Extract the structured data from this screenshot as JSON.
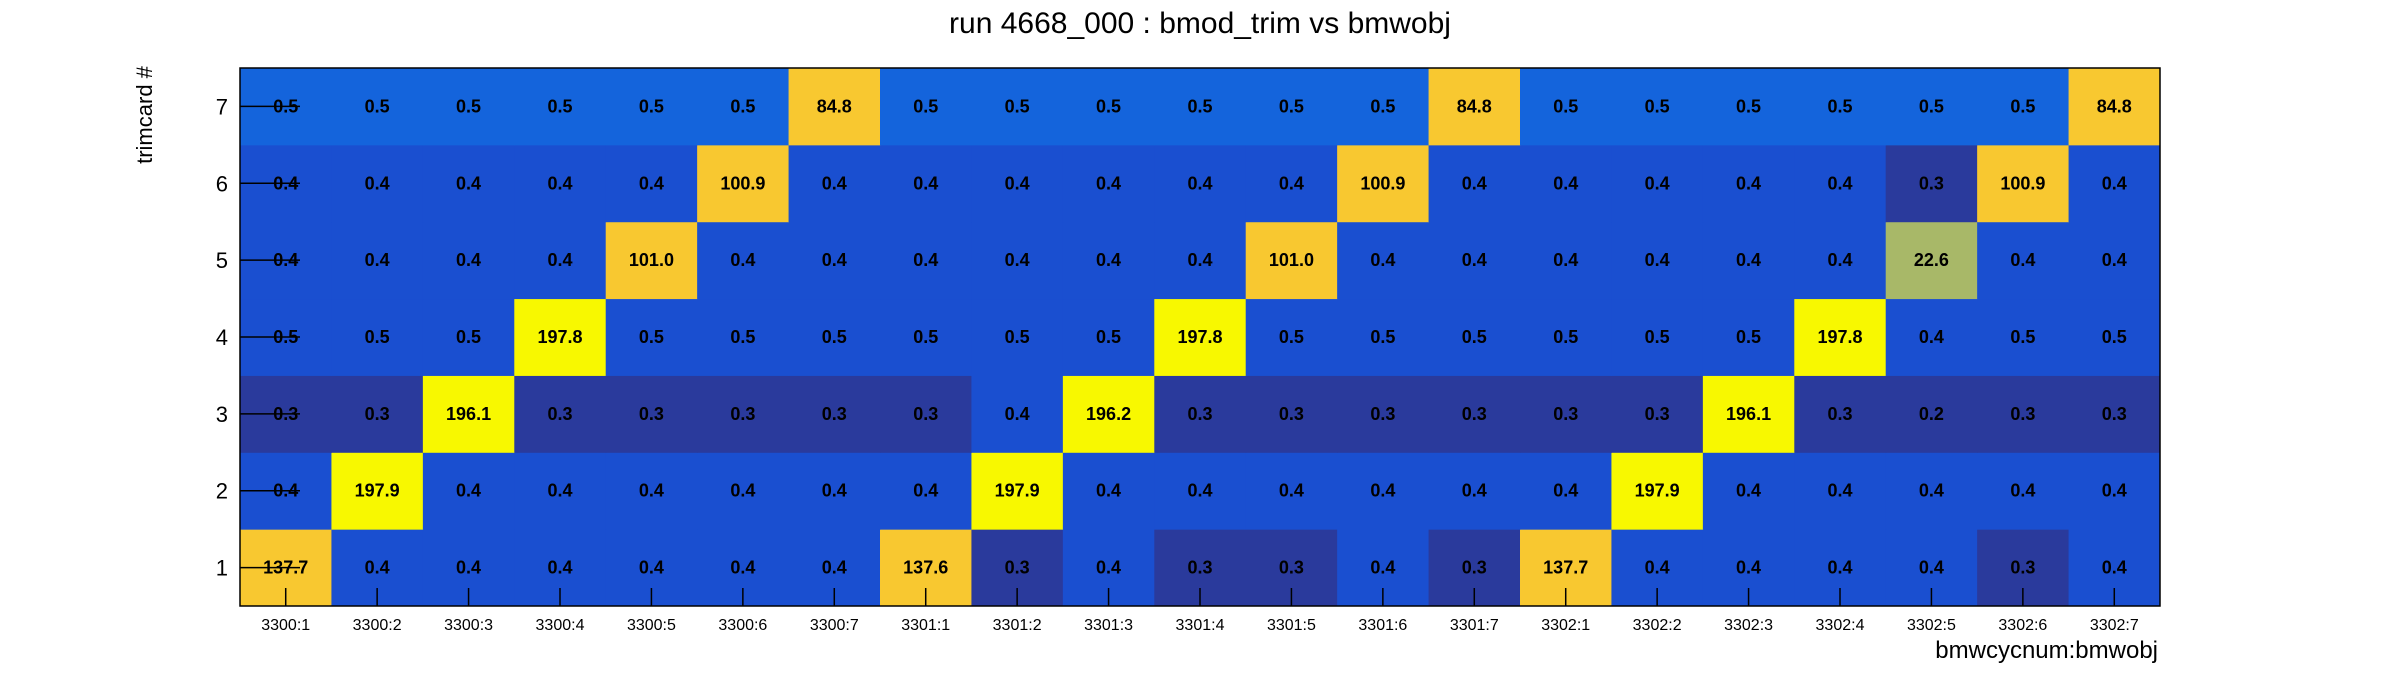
{
  "chart_data": {
    "type": "heatmap",
    "title": "run 4668_000 : bmod_trim vs bmwobj",
    "xlabel": "bmwcycnum:bmwobj",
    "ylabel": "trimcard #",
    "x_categories": [
      "3300:1",
      "3300:2",
      "3300:3",
      "3300:4",
      "3300:5",
      "3300:6",
      "3300:7",
      "3301:1",
      "3301:2",
      "3301:3",
      "3301:4",
      "3301:5",
      "3301:6",
      "3301:7",
      "3302:1",
      "3302:2",
      "3302:3",
      "3302:4",
      "3302:5",
      "3302:6",
      "3302:7"
    ],
    "y_categories": [
      "1",
      "2",
      "3",
      "4",
      "5",
      "6",
      "7"
    ],
    "values": [
      [
        "137.7",
        "0.4",
        "0.4",
        "0.4",
        "0.4",
        "0.4",
        "0.4",
        "137.6",
        "0.3",
        "0.4",
        "0.3",
        "0.3",
        "0.4",
        "0.3",
        "137.7",
        "0.4",
        "0.4",
        "0.4",
        "0.4",
        "0.3",
        "0.4"
      ],
      [
        "0.4",
        "197.9",
        "0.4",
        "0.4",
        "0.4",
        "0.4",
        "0.4",
        "0.4",
        "197.9",
        "0.4",
        "0.4",
        "0.4",
        "0.4",
        "0.4",
        "0.4",
        "197.9",
        "0.4",
        "0.4",
        "0.4",
        "0.4",
        "0.4"
      ],
      [
        "0.3",
        "0.3",
        "196.1",
        "0.3",
        "0.3",
        "0.3",
        "0.3",
        "0.3",
        "0.4",
        "196.2",
        "0.3",
        "0.3",
        "0.3",
        "0.3",
        "0.3",
        "0.3",
        "196.1",
        "0.3",
        "0.2",
        "0.3",
        "0.3"
      ],
      [
        "0.5",
        "0.5",
        "0.5",
        "197.8",
        "0.5",
        "0.5",
        "0.5",
        "0.5",
        "0.5",
        "0.5",
        "197.8",
        "0.5",
        "0.5",
        "0.5",
        "0.5",
        "0.5",
        "0.5",
        "197.8",
        "0.4",
        "0.5",
        "0.5"
      ],
      [
        "0.4",
        "0.4",
        "0.4",
        "0.4",
        "101.0",
        "0.4",
        "0.4",
        "0.4",
        "0.4",
        "0.4",
        "0.4",
        "101.0",
        "0.4",
        "0.4",
        "0.4",
        "0.4",
        "0.4",
        "0.4",
        "22.6",
        "0.4",
        "0.4"
      ],
      [
        "0.4",
        "0.4",
        "0.4",
        "0.4",
        "0.4",
        "100.9",
        "0.4",
        "0.4",
        "0.4",
        "0.4",
        "0.4",
        "0.4",
        "100.9",
        "0.4",
        "0.4",
        "0.4",
        "0.4",
        "0.4",
        "0.3",
        "100.9",
        "0.4"
      ],
      [
        "0.5",
        "0.5",
        "0.5",
        "0.5",
        "0.5",
        "0.5",
        "84.8",
        "0.5",
        "0.5",
        "0.5",
        "0.5",
        "0.5",
        "0.5",
        "84.8",
        "0.5",
        "0.5",
        "0.5",
        "0.5",
        "0.5",
        "0.5",
        "84.8"
      ]
    ],
    "color_palette": {
      "dark_navy": "#2a3a9c",
      "mid_blue": "#1a4fd0",
      "bright_blue": "#1464dc",
      "olive": "#a8b868",
      "gold": "#f8c830",
      "yellow": "#f8f800"
    },
    "grid": false,
    "legend": "none"
  }
}
